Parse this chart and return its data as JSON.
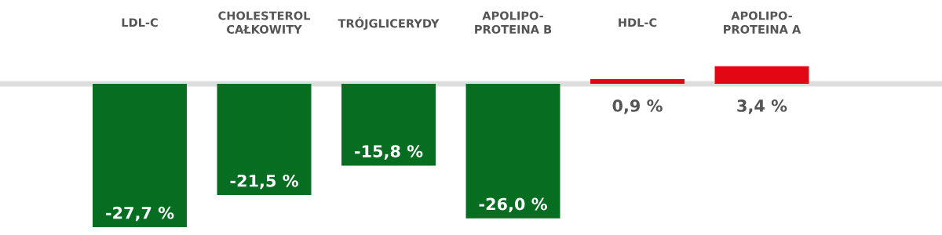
{
  "chart_data": {
    "type": "bar",
    "categories": [
      "LDL-C",
      "CHOLESTEROL\nCAŁKOWITY",
      "TRÓJGLICERYDY",
      "APOLIPO-\nPROTEINA B",
      "HDL-C",
      "APOLIPO-\nPROTEINA A"
    ],
    "values": [
      -27.7,
      -21.5,
      -15.8,
      -26.0,
      0.9,
      3.4
    ],
    "colors": [
      "#076e21",
      "#076e21",
      "#076e21",
      "#076e21",
      "#e30613",
      "#e30613"
    ],
    "value_labels": [
      "-27,7 %",
      "-21,5 %",
      "-15,8 %",
      "-26,0 %",
      "0,9 %",
      "3,4 %"
    ],
    "ylim": [
      -29.2,
      16.2
    ]
  }
}
